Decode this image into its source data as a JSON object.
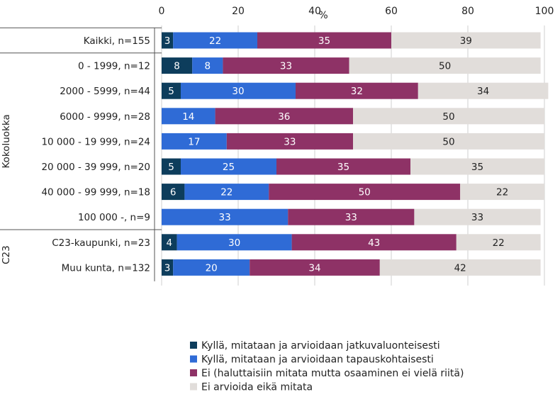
{
  "chart_data": {
    "type": "bar",
    "stacked": true,
    "orientation": "horizontal",
    "x_unit": "%",
    "xlim": [
      0,
      100
    ],
    "x_ticks": [
      0,
      20,
      40,
      60,
      80,
      100
    ],
    "categories": [
      "Kaikki, n=155",
      "0 - 1999, n=12",
      "2000 - 5999, n=44",
      "6000 - 9999, n=28",
      "10 000 - 19 999, n=24",
      "20 000 - 39 999, n=20",
      "40 000 - 99 999, n=18",
      "100 000 -, n=9",
      "C23-kaupunki, n=23",
      "Muu kunta, n=132"
    ],
    "groups": [
      {
        "label": "Kokoluokka",
        "start": 1,
        "end": 7
      },
      {
        "label": "C23",
        "start": 8,
        "end": 9
      }
    ],
    "series": [
      {
        "name": "Kyllä, mitataan ja arvioidaan jatkuvaluonteisesti",
        "color": "#0d3d5c",
        "values": [
          3,
          8,
          5,
          0,
          0,
          5,
          6,
          0,
          4,
          3
        ],
        "labels": [
          "3",
          "8",
          "5",
          "",
          "",
          "5",
          "6",
          "",
          "4",
          "3"
        ]
      },
      {
        "name": "Kyllä, mitataan ja arvioidaan tapauskohtaisesti",
        "color": "#2f6bd6",
        "values": [
          22,
          8,
          30,
          14,
          17,
          25,
          22,
          33,
          30,
          20
        ],
        "labels": [
          "22",
          "8",
          "30",
          "14",
          "17",
          "25",
          "22",
          "33",
          "30",
          "20"
        ]
      },
      {
        "name": "Ei (haluttaisiin mitata mutta osaaminen ei vielä riitä)",
        "color": "#8e3266",
        "values": [
          35,
          33,
          32,
          36,
          33,
          35,
          50,
          33,
          43,
          34
        ],
        "labels": [
          "35",
          "33",
          "32",
          "36",
          "33",
          "35",
          "50",
          "33",
          "43",
          "34"
        ]
      },
      {
        "name": "Ei arvioida eikä mitata",
        "color": "#e1ddda",
        "values": [
          39,
          50,
          34,
          50,
          50,
          35,
          22,
          33,
          22,
          42
        ],
        "labels": [
          "39",
          "50",
          "34",
          "50",
          "50",
          "35",
          "22",
          "33",
          "22",
          "42"
        ]
      }
    ],
    "legend_position": "bottom",
    "grid": true
  }
}
